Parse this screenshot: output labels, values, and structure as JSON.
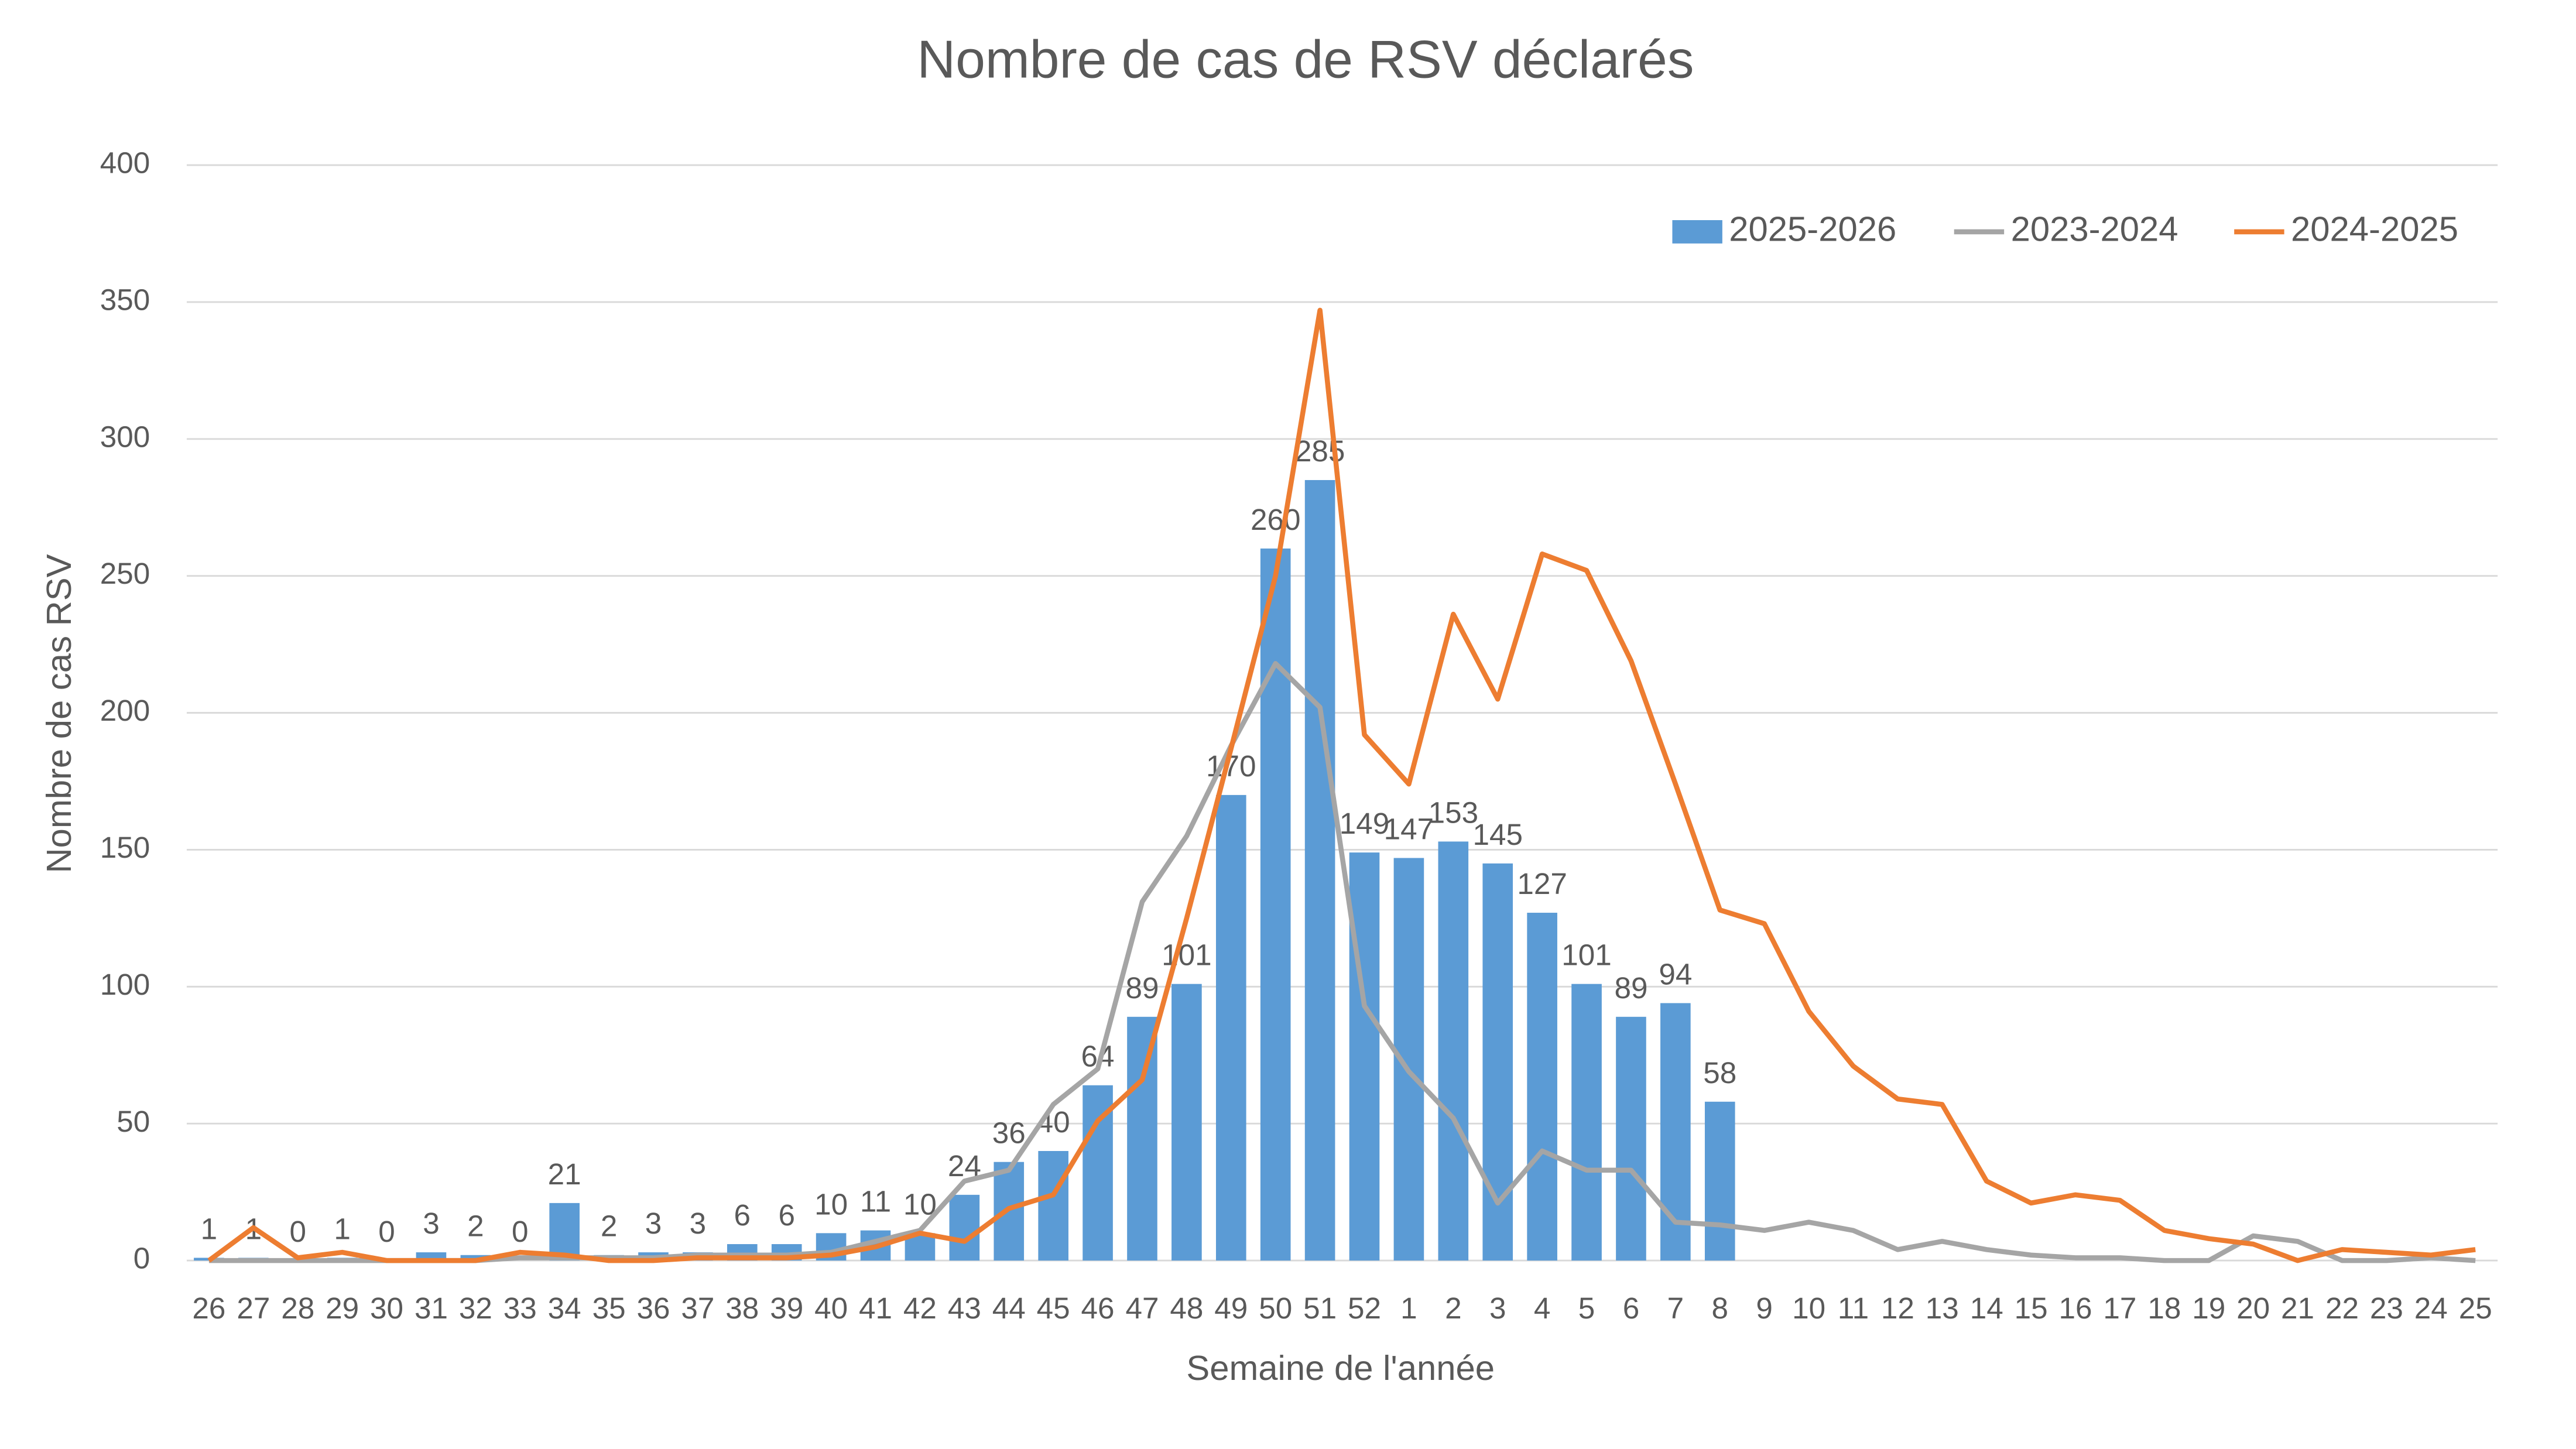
{
  "chart_data": {
    "type": "bar",
    "title": "Nombre de cas de RSV déclarés",
    "x_label": "Semaine de l'année",
    "y_label": "Nombre de cas RSV",
    "categories": [
      "26",
      "27",
      "28",
      "29",
      "30",
      "31",
      "32",
      "33",
      "34",
      "35",
      "36",
      "37",
      "38",
      "39",
      "40",
      "41",
      "42",
      "43",
      "44",
      "45",
      "46",
      "47",
      "48",
      "49",
      "50",
      "51",
      "52",
      "1",
      "2",
      "3",
      "4",
      "5",
      "6",
      "7",
      "8",
      "9",
      "10",
      "11",
      "12",
      "13",
      "14",
      "15",
      "16",
      "17",
      "18",
      "19",
      "20",
      "21",
      "22",
      "23",
      "24",
      "25"
    ],
    "series": [
      {
        "name": "2025-2026",
        "type": "bar",
        "color": "#5b9bd5",
        "data_labels": true,
        "values": [
          1,
          1,
          0,
          1,
          0,
          3,
          2,
          0,
          21,
          2,
          3,
          3,
          6,
          6,
          10,
          11,
          10,
          24,
          36,
          40,
          64,
          89,
          101,
          170,
          260,
          285,
          149,
          147,
          153,
          145,
          127,
          101,
          89,
          94,
          58,
          null,
          null,
          null,
          null,
          null,
          null,
          null,
          null,
          null,
          null,
          null,
          null,
          null,
          null,
          null,
          null,
          null
        ]
      },
      {
        "name": "2023-2024",
        "type": "line",
        "color": "#a5a5a5",
        "values": [
          0,
          0,
          0,
          0,
          0,
          0,
          0,
          1,
          1,
          1,
          1,
          2,
          2,
          2,
          3,
          7,
          11,
          29,
          33,
          57,
          70,
          131,
          155,
          188,
          218,
          202,
          93,
          69,
          52,
          21,
          40,
          33,
          33,
          14,
          13,
          11,
          14,
          11,
          4,
          7,
          4,
          2,
          1,
          1,
          0,
          0,
          9,
          7,
          0,
          0,
          1,
          0
        ]
      },
      {
        "name": "2024-2025",
        "type": "line",
        "color": "#ed7d31",
        "values": [
          0,
          12,
          1,
          3,
          0,
          0,
          0,
          3,
          2,
          0,
          0,
          1,
          1,
          1,
          2,
          5,
          10,
          7,
          19,
          24,
          51,
          66,
          125,
          187,
          250,
          347,
          192,
          174,
          236,
          205,
          258,
          252,
          219,
          174,
          128,
          123,
          91,
          71,
          59,
          57,
          29,
          21,
          24,
          22,
          11,
          8,
          6,
          0,
          4,
          3,
          2,
          4
        ]
      }
    ],
    "ylim": [
      0,
      400
    ],
    "yticks": [
      0,
      50,
      100,
      150,
      200,
      250,
      300,
      350,
      400
    ],
    "grid": true,
    "legend": "top-right"
  }
}
